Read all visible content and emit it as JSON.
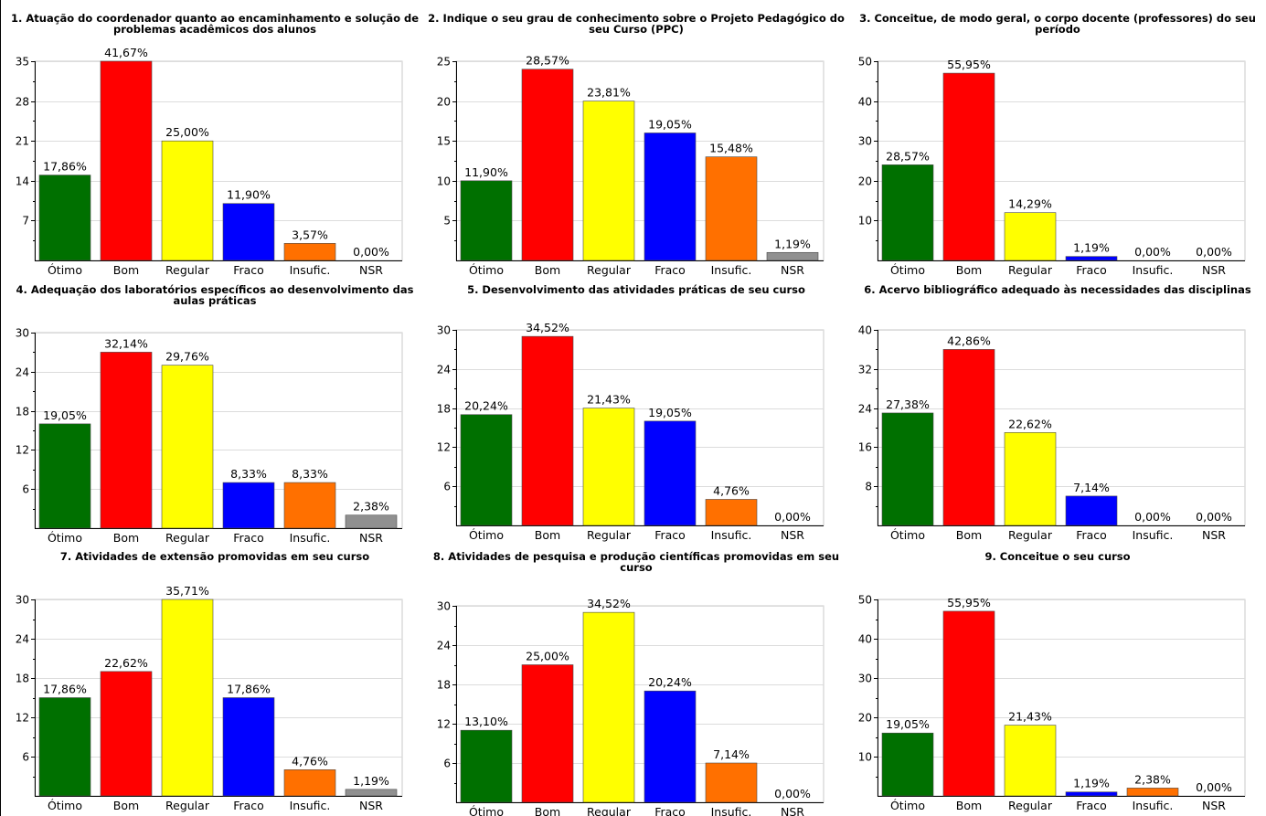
{
  "colors": [
    "#007000",
    "#ff0000",
    "#ffff00",
    "#0000ff",
    "#ff7000",
    "#909090"
  ],
  "chart_data": [
    {
      "type": "bar",
      "title": "1. Atuação do coordenador quanto ao encaminhamento e solução de problemas acadêmicos dos alunos",
      "categories": [
        "Ótimo",
        "Bom",
        "Regular",
        "Fraco",
        "Insufic.",
        "NSR"
      ],
      "values": [
        15,
        35,
        21,
        10,
        3,
        0
      ],
      "labels": [
        "17,86%",
        "41,67%",
        "25,00%",
        "11,90%",
        "3,57%",
        "0,00%"
      ],
      "ylim": [
        0,
        35
      ],
      "yticks": [
        7,
        14,
        21,
        28,
        35
      ],
      "grid": true
    },
    {
      "type": "bar",
      "title": "2. Indique o seu grau de conhecimento sobre o Projeto Pedagógico do seu Curso (PPC)",
      "categories": [
        "Ótimo",
        "Bom",
        "Regular",
        "Fraco",
        "Insufic.",
        "NSR"
      ],
      "values": [
        10,
        24,
        20,
        16,
        13,
        1
      ],
      "labels": [
        "11,90%",
        "28,57%",
        "23,81%",
        "19,05%",
        "15,48%",
        "1,19%"
      ],
      "ylim": [
        0,
        25
      ],
      "yticks": [
        5,
        10,
        15,
        20,
        25
      ],
      "grid": true
    },
    {
      "type": "bar",
      "title": "3. Conceitue, de modo geral, o corpo docente (professores) do seu período",
      "categories": [
        "Ótimo",
        "Bom",
        "Regular",
        "Fraco",
        "Insufic.",
        "NSR"
      ],
      "values": [
        24,
        47,
        12,
        1,
        0,
        0
      ],
      "labels": [
        "28,57%",
        "55,95%",
        "14,29%",
        "1,19%",
        "0,00%",
        "0,00%"
      ],
      "ylim": [
        0,
        50
      ],
      "yticks": [
        10,
        20,
        30,
        40,
        50
      ],
      "grid": true
    },
    {
      "type": "bar",
      "title": "4. Adequação dos laboratórios específicos ao desenvolvimento das aulas práticas",
      "categories": [
        "Ótimo",
        "Bom",
        "Regular",
        "Fraco",
        "Insufic.",
        "NSR"
      ],
      "values": [
        16,
        27,
        25,
        7,
        7,
        2
      ],
      "labels": [
        "19,05%",
        "32,14%",
        "29,76%",
        "8,33%",
        "8,33%",
        "2,38%"
      ],
      "ylim": [
        0,
        30
      ],
      "yticks": [
        6,
        12,
        18,
        24,
        30
      ],
      "grid": true
    },
    {
      "type": "bar",
      "title": "5. Desenvolvimento das atividades práticas de seu curso",
      "categories": [
        "Ótimo",
        "Bom",
        "Regular",
        "Fraco",
        "Insufic.",
        "NSR"
      ],
      "values": [
        17,
        29,
        18,
        16,
        4,
        0
      ],
      "labels": [
        "20,24%",
        "34,52%",
        "21,43%",
        "19,05%",
        "4,76%",
        "0,00%"
      ],
      "ylim": [
        0,
        30
      ],
      "yticks": [
        6,
        12,
        18,
        24,
        30
      ],
      "grid": true
    },
    {
      "type": "bar",
      "title": "6. Acervo bibliográfico adequado às necessidades das disciplinas",
      "categories": [
        "Ótimo",
        "Bom",
        "Regular",
        "Fraco",
        "Insufic.",
        "NSR"
      ],
      "values": [
        23,
        36,
        19,
        6,
        0,
        0
      ],
      "labels": [
        "27,38%",
        "42,86%",
        "22,62%",
        "7,14%",
        "0,00%",
        "0,00%"
      ],
      "ylim": [
        0,
        40
      ],
      "yticks": [
        8,
        16,
        24,
        32,
        40
      ],
      "grid": true
    },
    {
      "type": "bar",
      "title": "7. Atividades de extensão promovidas em seu curso",
      "categories": [
        "Ótimo",
        "Bom",
        "Regular",
        "Fraco",
        "Insufic.",
        "NSR"
      ],
      "values": [
        15,
        19,
        30,
        15,
        4,
        1
      ],
      "labels": [
        "17,86%",
        "22,62%",
        "35,71%",
        "17,86%",
        "4,76%",
        "1,19%"
      ],
      "ylim": [
        0,
        30
      ],
      "yticks": [
        6,
        12,
        18,
        24,
        30
      ],
      "grid": true
    },
    {
      "type": "bar",
      "title": "8. Atividades de pesquisa e produção científicas promovidas em seu curso",
      "categories": [
        "Ótimo",
        "Bom",
        "Regular",
        "Fraco",
        "Insufic.",
        "NSR"
      ],
      "values": [
        11,
        21,
        29,
        17,
        6,
        0
      ],
      "labels": [
        "13,10%",
        "25,00%",
        "34,52%",
        "20,24%",
        "7,14%",
        "0,00%"
      ],
      "ylim": [
        0,
        30
      ],
      "yticks": [
        6,
        12,
        18,
        24,
        30
      ],
      "grid": true
    },
    {
      "type": "bar",
      "title": "9. Conceitue o seu curso",
      "categories": [
        "Ótimo",
        "Bom",
        "Regular",
        "Fraco",
        "Insufic.",
        "NSR"
      ],
      "values": [
        16,
        47,
        18,
        1,
        2,
        0
      ],
      "labels": [
        "19,05%",
        "55,95%",
        "21,43%",
        "1,19%",
        "2,38%",
        "0,00%"
      ],
      "ylim": [
        0,
        50
      ],
      "yticks": [
        10,
        20,
        30,
        40,
        50
      ],
      "grid": true
    }
  ]
}
